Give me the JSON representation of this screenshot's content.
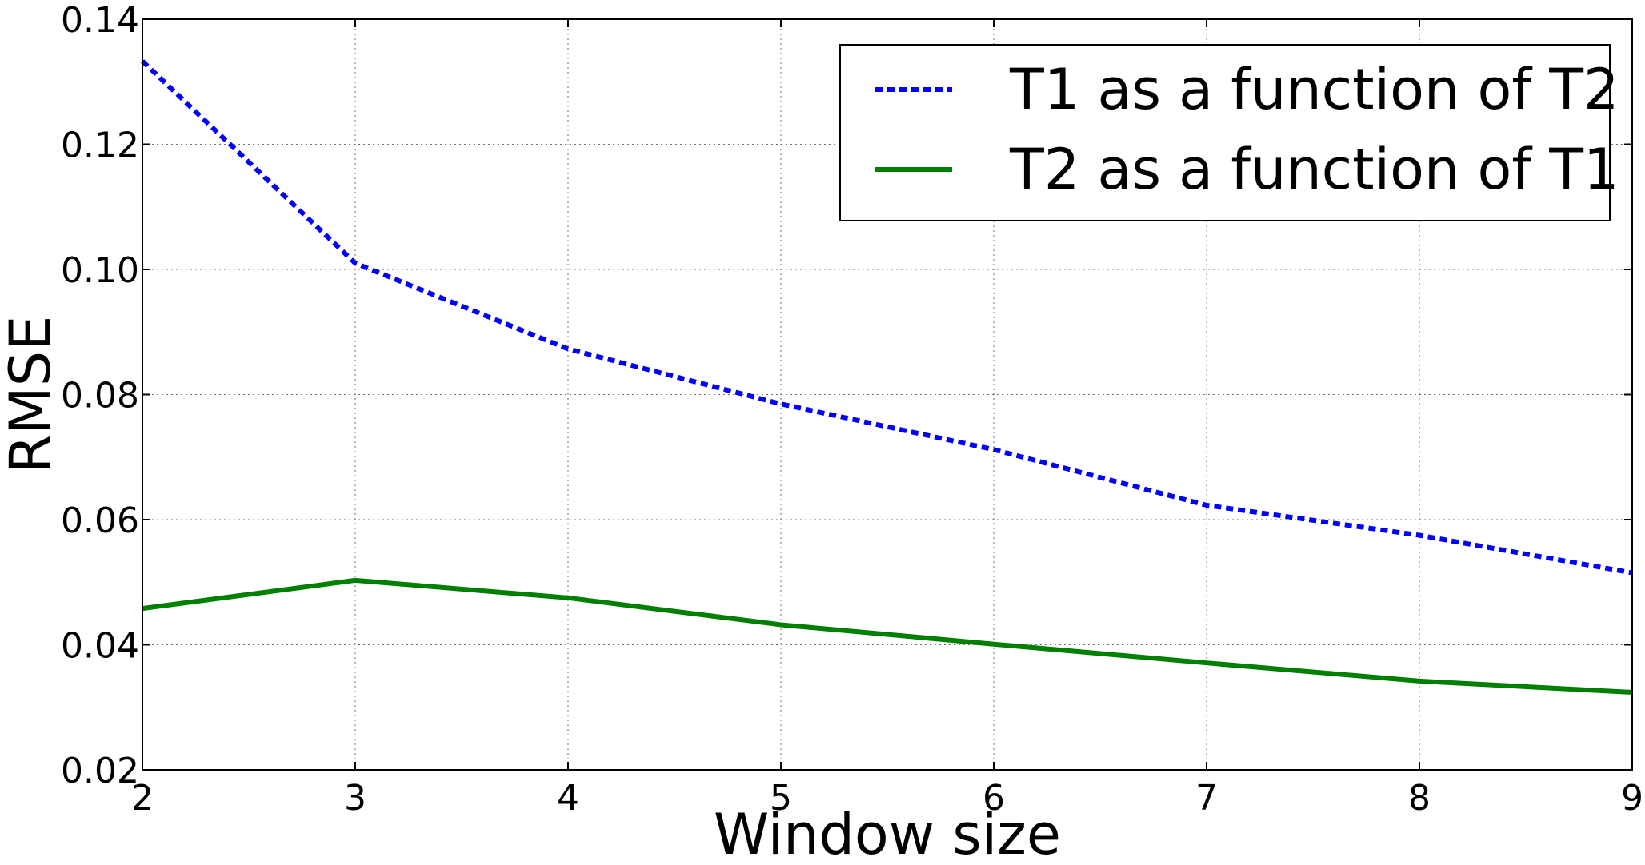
{
  "chart_data": {
    "type": "line",
    "title": "",
    "xlabel": "Window size",
    "ylabel": "RMSE",
    "x": [
      2,
      3,
      4,
      5,
      6,
      7,
      8,
      9
    ],
    "xlim": [
      2,
      9
    ],
    "ylim": [
      0.02,
      0.14
    ],
    "x_ticks": [
      "2",
      "3",
      "4",
      "5",
      "6",
      "7",
      "8",
      "9"
    ],
    "y_ticks": [
      "0.02",
      "0.04",
      "0.06",
      "0.08",
      "0.10",
      "0.12",
      "0.14"
    ],
    "grid": true,
    "legend_position": "top-right",
    "series": [
      {
        "name": "T1 as a function of T2",
        "values": [
          0.1333,
          0.101,
          0.0873,
          0.0785,
          0.0712,
          0.0623,
          0.0575,
          0.0515
        ],
        "color": "#0000ff",
        "style": "dotted"
      },
      {
        "name": "T2 as a function of T1",
        "values": [
          0.0458,
          0.0503,
          0.0475,
          0.0432,
          0.0401,
          0.0371,
          0.0342,
          0.0324
        ],
        "color": "#008000",
        "style": "solid"
      }
    ]
  }
}
